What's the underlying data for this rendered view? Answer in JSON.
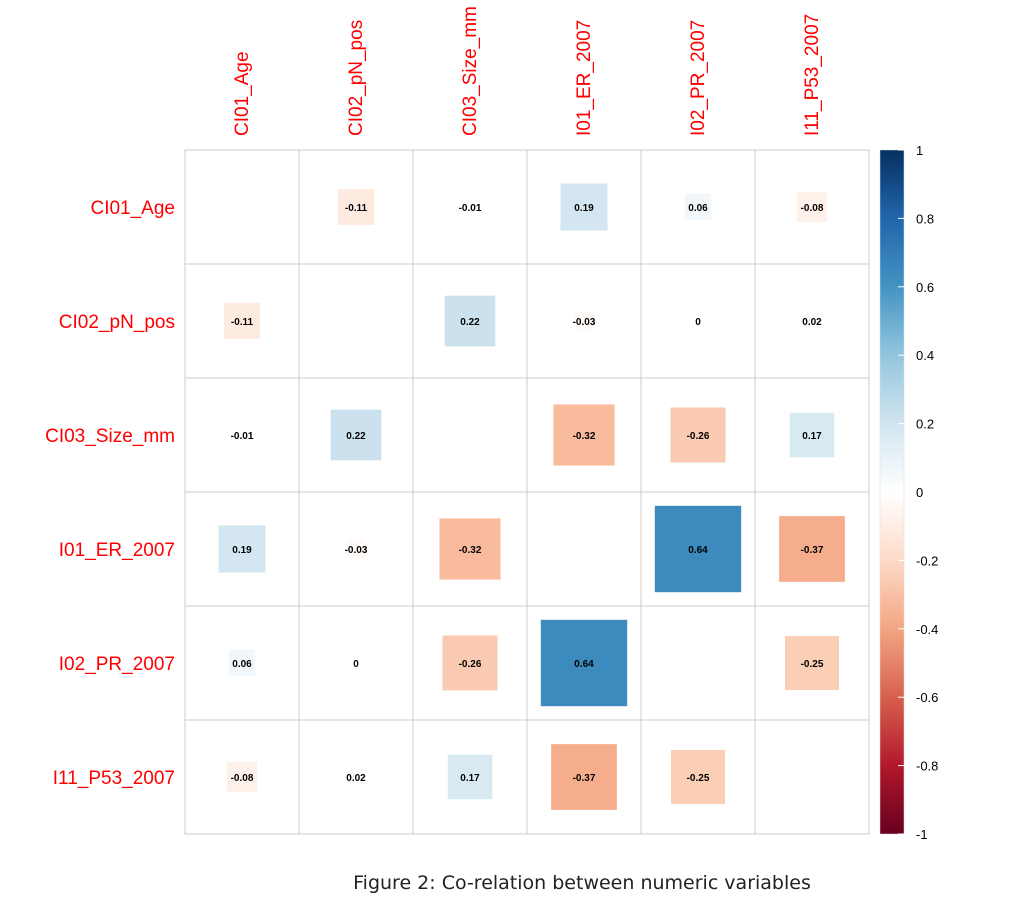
{
  "chart_data": {
    "type": "heatmap",
    "variables": [
      "CI01_Age",
      "CI02_pN_pos",
      "CI03_Size_mm",
      "I01_ER_2007",
      "I02_PR_2007",
      "I11_P53_2007"
    ],
    "matrix": [
      [
        null,
        -0.11,
        -0.01,
        0.19,
        0.06,
        -0.08
      ],
      [
        -0.11,
        null,
        0.22,
        -0.03,
        0,
        0.02
      ],
      [
        -0.01,
        0.22,
        null,
        -0.32,
        -0.26,
        0.17
      ],
      [
        0.19,
        -0.03,
        -0.32,
        null,
        0.64,
        -0.37
      ],
      [
        0.06,
        0,
        -0.26,
        0.64,
        null,
        -0.25
      ],
      [
        -0.08,
        0.02,
        0.17,
        -0.37,
        -0.25,
        null
      ]
    ],
    "colorbar": {
      "range": [
        -1,
        1
      ],
      "ticks": [
        1,
        0.8,
        0.6,
        0.4,
        0.2,
        0,
        -0.2,
        -0.4,
        -0.6,
        -0.8,
        -1
      ],
      "tick_labels": [
        "1",
        "0.8",
        "0.6",
        "0.4",
        "0.2",
        "0",
        "-0.2",
        "-0.4",
        "-0.6",
        "-0.8",
        "-1"
      ]
    }
  },
  "caption": "Figure 2: Co-relation between numeric variables"
}
